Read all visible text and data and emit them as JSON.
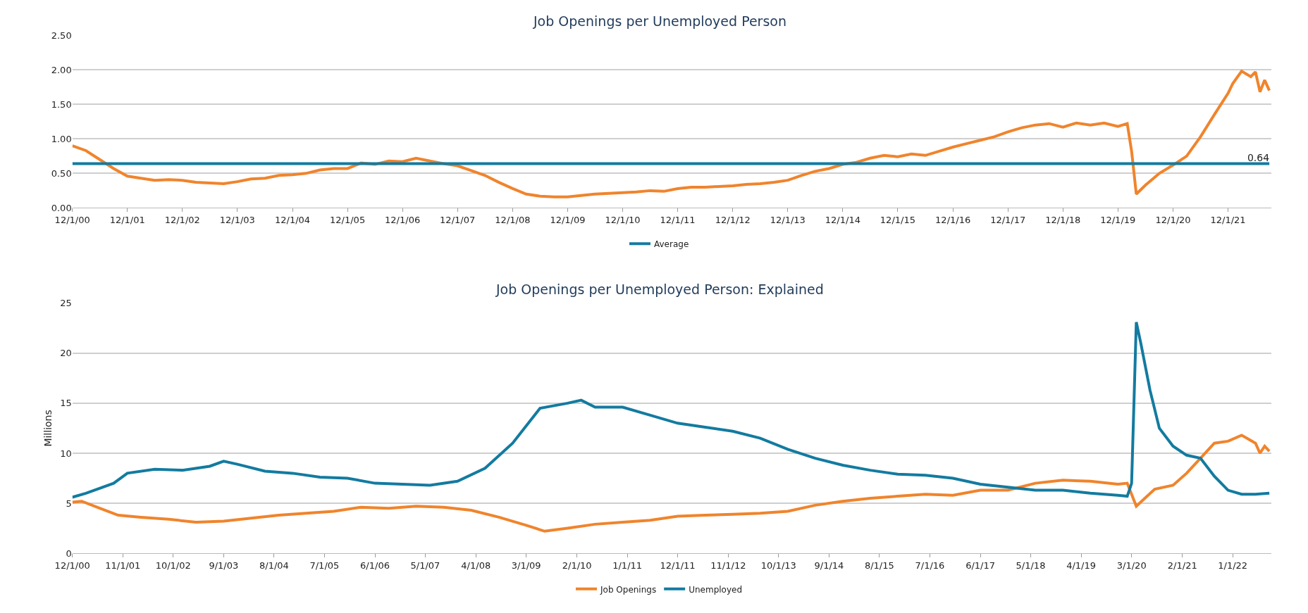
{
  "chart_data": [
    {
      "type": "line",
      "title": "Job Openings per Unemployed Person",
      "xlim": [
        "2000-12-01",
        "2022-09-15"
      ],
      "ylim": [
        0,
        2.5
      ],
      "yticks": [
        {
          "value": 0,
          "label": "0.00"
        },
        {
          "value": 0.5,
          "label": "0.50"
        },
        {
          "value": 1,
          "label": "1.00"
        },
        {
          "value": 1.5,
          "label": "1.50"
        },
        {
          "value": 2,
          "label": "2.00"
        },
        {
          "value": 2.5,
          "label": "2.50"
        }
      ],
      "xticks": [
        {
          "value": "2000-12-01",
          "label": "12/1/00"
        },
        {
          "value": "2001-12-01",
          "label": "12/1/01"
        },
        {
          "value": "2002-12-01",
          "label": "12/1/02"
        },
        {
          "value": "2003-12-01",
          "label": "12/1/03"
        },
        {
          "value": "2004-12-01",
          "label": "12/1/04"
        },
        {
          "value": "2005-12-01",
          "label": "12/1/05"
        },
        {
          "value": "2006-12-01",
          "label": "12/1/06"
        },
        {
          "value": "2007-12-01",
          "label": "12/1/07"
        },
        {
          "value": "2008-12-01",
          "label": "12/1/08"
        },
        {
          "value": "2009-12-01",
          "label": "12/1/09"
        },
        {
          "value": "2010-12-01",
          "label": "12/1/10"
        },
        {
          "value": "2011-12-01",
          "label": "12/1/11"
        },
        {
          "value": "2012-12-01",
          "label": "12/1/12"
        },
        {
          "value": "2013-12-01",
          "label": "12/1/13"
        },
        {
          "value": "2014-12-01",
          "label": "12/1/14"
        },
        {
          "value": "2015-12-01",
          "label": "12/1/15"
        },
        {
          "value": "2016-12-01",
          "label": "12/1/16"
        },
        {
          "value": "2017-12-01",
          "label": "12/1/17"
        },
        {
          "value": "2018-12-01",
          "label": "12/1/18"
        },
        {
          "value": "2019-12-01",
          "label": "12/1/19"
        },
        {
          "value": "2020-12-01",
          "label": "12/1/20"
        },
        {
          "value": "2021-12-01",
          "label": "12/1/21"
        }
      ],
      "grid": "y",
      "legend": "bottom",
      "line_style": "solid",
      "marker": "none",
      "series": [
        {
          "color": "#f0842c",
          "x": [
            "2000-12",
            "2001-03",
            "2001-06",
            "2001-09",
            "2001-12",
            "2002-03",
            "2002-06",
            "2002-09",
            "2002-12",
            "2003-03",
            "2003-06",
            "2003-09",
            "2003-12",
            "2004-03",
            "2004-06",
            "2004-09",
            "2004-12",
            "2005-03",
            "2005-06",
            "2005-09",
            "2005-12",
            "2006-03",
            "2006-06",
            "2006-09",
            "2006-12",
            "2007-03",
            "2007-06",
            "2007-09",
            "2007-12",
            "2008-03",
            "2008-06",
            "2008-09",
            "2008-12",
            "2009-03",
            "2009-06",
            "2009-09",
            "2009-12",
            "2010-03",
            "2010-06",
            "2010-09",
            "2010-12",
            "2011-03",
            "2011-06",
            "2011-09",
            "2011-12",
            "2012-03",
            "2012-06",
            "2012-09",
            "2012-12",
            "2013-03",
            "2013-06",
            "2013-09",
            "2013-12",
            "2014-03",
            "2014-06",
            "2014-09",
            "2014-12",
            "2015-03",
            "2015-06",
            "2015-09",
            "2015-12",
            "2016-03",
            "2016-06",
            "2016-09",
            "2016-12",
            "2017-03",
            "2017-06",
            "2017-09",
            "2017-12",
            "2018-03",
            "2018-06",
            "2018-09",
            "2018-12",
            "2019-03",
            "2019-06",
            "2019-09",
            "2019-12",
            "2020-02",
            "2020-03",
            "2020-04",
            "2020-06",
            "2020-09",
            "2020-12",
            "2021-03",
            "2021-06",
            "2021-09",
            "2021-12",
            "2022-01",
            "2022-03",
            "2022-05",
            "2022-06",
            "2022-07",
            "2022-08",
            "2022-09"
          ],
          "values": [
            0.9,
            0.83,
            0.7,
            0.57,
            0.46,
            0.43,
            0.4,
            0.41,
            0.4,
            0.37,
            0.36,
            0.35,
            0.38,
            0.42,
            0.43,
            0.47,
            0.48,
            0.5,
            0.55,
            0.57,
            0.57,
            0.65,
            0.63,
            0.68,
            0.67,
            0.72,
            0.68,
            0.64,
            0.61,
            0.54,
            0.47,
            0.37,
            0.28,
            0.2,
            0.17,
            0.16,
            0.16,
            0.18,
            0.2,
            0.21,
            0.22,
            0.23,
            0.25,
            0.24,
            0.28,
            0.3,
            0.3,
            0.31,
            0.32,
            0.34,
            0.35,
            0.37,
            0.4,
            0.47,
            0.53,
            0.57,
            0.63,
            0.66,
            0.72,
            0.76,
            0.74,
            0.78,
            0.76,
            0.82,
            0.88,
            0.93,
            0.98,
            1.03,
            1.1,
            1.16,
            1.2,
            1.22,
            1.17,
            1.23,
            1.2,
            1.23,
            1.18,
            1.22,
            0.82,
            0.2,
            0.33,
            0.5,
            0.62,
            0.75,
            1.03,
            1.35,
            1.66,
            1.8,
            1.98,
            1.9,
            1.97,
            1.68,
            1.85,
            1.7
          ]
        },
        {
          "name": "Average",
          "color": "#137ba0",
          "x": [
            "2000-12",
            "2022-09"
          ],
          "values": [
            0.64,
            0.64
          ],
          "value_labels": [
            null,
            "0.64"
          ]
        }
      ]
    },
    {
      "type": "line",
      "title": "Job Openings per Unemployed Person: Explained",
      "ylabel": "Millions",
      "xlim": [
        "2000-12-01",
        "2022-09-15"
      ],
      "ylim": [
        0,
        25
      ],
      "yticks": [
        0,
        5,
        10,
        15,
        20,
        25
      ],
      "xticks": [
        {
          "value": "2000-12-01",
          "label": "12/1/00"
        },
        {
          "value": "2001-11-01",
          "label": "11/1/01"
        },
        {
          "value": "2002-10-01",
          "label": "10/1/02"
        },
        {
          "value": "2003-09-01",
          "label": "9/1/03"
        },
        {
          "value": "2004-08-01",
          "label": "8/1/04"
        },
        {
          "value": "2005-07-01",
          "label": "7/1/05"
        },
        {
          "value": "2006-06-01",
          "label": "6/1/06"
        },
        {
          "value": "2007-05-01",
          "label": "5/1/07"
        },
        {
          "value": "2008-04-01",
          "label": "4/1/08"
        },
        {
          "value": "2009-03-01",
          "label": "3/1/09"
        },
        {
          "value": "2010-02-01",
          "label": "2/1/10"
        },
        {
          "value": "2011-01-01",
          "label": "1/1/11"
        },
        {
          "value": "2011-12-01",
          "label": "12/1/11"
        },
        {
          "value": "2012-11-01",
          "label": "11/1/12"
        },
        {
          "value": "2013-10-01",
          "label": "10/1/13"
        },
        {
          "value": "2014-09-01",
          "label": "9/1/14"
        },
        {
          "value": "2015-08-01",
          "label": "8/1/15"
        },
        {
          "value": "2016-07-01",
          "label": "7/1/16"
        },
        {
          "value": "2017-06-01",
          "label": "6/1/17"
        },
        {
          "value": "2018-05-01",
          "label": "5/1/18"
        },
        {
          "value": "2019-04-01",
          "label": "4/1/19"
        },
        {
          "value": "2020-03-01",
          "label": "3/1/20"
        },
        {
          "value": "2021-02-01",
          "label": "2/1/21"
        },
        {
          "value": "2022-01-01",
          "label": "1/1/22"
        }
      ],
      "grid": "y",
      "legend": "bottom",
      "line_style": "solid",
      "marker": "none",
      "series": [
        {
          "name": "Job Openings",
          "color": "#f0842c",
          "x": [
            "2000-12",
            "2001-02",
            "2001-06",
            "2001-10",
            "2002-03",
            "2002-09",
            "2003-03",
            "2003-09",
            "2004-03",
            "2004-09",
            "2005-03",
            "2005-09",
            "2006-03",
            "2006-09",
            "2007-03",
            "2007-09",
            "2008-03",
            "2008-09",
            "2009-03",
            "2009-07",
            "2009-12",
            "2010-06",
            "2010-12",
            "2011-06",
            "2011-12",
            "2012-06",
            "2012-12",
            "2013-06",
            "2013-12",
            "2014-06",
            "2014-12",
            "2015-06",
            "2015-12",
            "2016-06",
            "2016-12",
            "2017-06",
            "2017-12",
            "2018-06",
            "2018-12",
            "2019-06",
            "2019-12",
            "2020-02",
            "2020-04",
            "2020-08",
            "2020-12",
            "2021-03",
            "2021-06",
            "2021-09",
            "2021-12",
            "2022-03",
            "2022-06",
            "2022-07",
            "2022-08",
            "2022-09"
          ],
          "values": [
            5.1,
            5.2,
            4.5,
            3.8,
            3.6,
            3.4,
            3.1,
            3.2,
            3.5,
            3.8,
            4.0,
            4.2,
            4.6,
            4.5,
            4.7,
            4.6,
            4.3,
            3.6,
            2.8,
            2.2,
            2.5,
            2.9,
            3.1,
            3.3,
            3.7,
            3.8,
            3.9,
            4.0,
            4.2,
            4.8,
            5.2,
            5.5,
            5.7,
            5.9,
            5.8,
            6.3,
            6.3,
            7.0,
            7.3,
            7.2,
            6.9,
            7.0,
            4.7,
            6.4,
            6.8,
            8.0,
            9.5,
            11.0,
            11.2,
            11.8,
            11.0,
            10.0,
            10.7,
            10.2
          ]
        },
        {
          "name": "Unemployed",
          "color": "#137ba0",
          "x": [
            "2000-12",
            "2001-03",
            "2001-09",
            "2001-12",
            "2002-06",
            "2002-12",
            "2003-06",
            "2003-09",
            "2003-12",
            "2004-06",
            "2004-12",
            "2005-06",
            "2005-12",
            "2006-06",
            "2006-12",
            "2007-06",
            "2007-12",
            "2008-06",
            "2008-12",
            "2009-06",
            "2009-12",
            "2010-03",
            "2010-06",
            "2010-12",
            "2011-06",
            "2011-12",
            "2012-06",
            "2012-12",
            "2013-06",
            "2013-12",
            "2014-06",
            "2014-12",
            "2015-06",
            "2015-12",
            "2016-06",
            "2016-12",
            "2017-06",
            "2017-12",
            "2018-06",
            "2018-12",
            "2019-06",
            "2019-12",
            "2020-02",
            "2020-03",
            "2020-04",
            "2020-05",
            "2020-07",
            "2020-09",
            "2020-12",
            "2021-03",
            "2021-06",
            "2021-09",
            "2021-12",
            "2022-03",
            "2022-06",
            "2022-09"
          ],
          "values": [
            5.6,
            6.0,
            7.0,
            8.0,
            8.4,
            8.3,
            8.7,
            9.2,
            8.9,
            8.2,
            8.0,
            7.6,
            7.5,
            7.0,
            6.9,
            6.8,
            7.2,
            8.5,
            11.0,
            14.5,
            15.0,
            15.3,
            14.6,
            14.6,
            13.8,
            13.0,
            12.6,
            12.2,
            11.5,
            10.4,
            9.5,
            8.8,
            8.3,
            7.9,
            7.8,
            7.5,
            6.9,
            6.6,
            6.3,
            6.3,
            6.0,
            5.8,
            5.7,
            7.0,
            23.1,
            21.0,
            16.3,
            12.5,
            10.7,
            9.8,
            9.5,
            7.7,
            6.3,
            5.9,
            5.9,
            6.0
          ]
        }
      ]
    }
  ]
}
